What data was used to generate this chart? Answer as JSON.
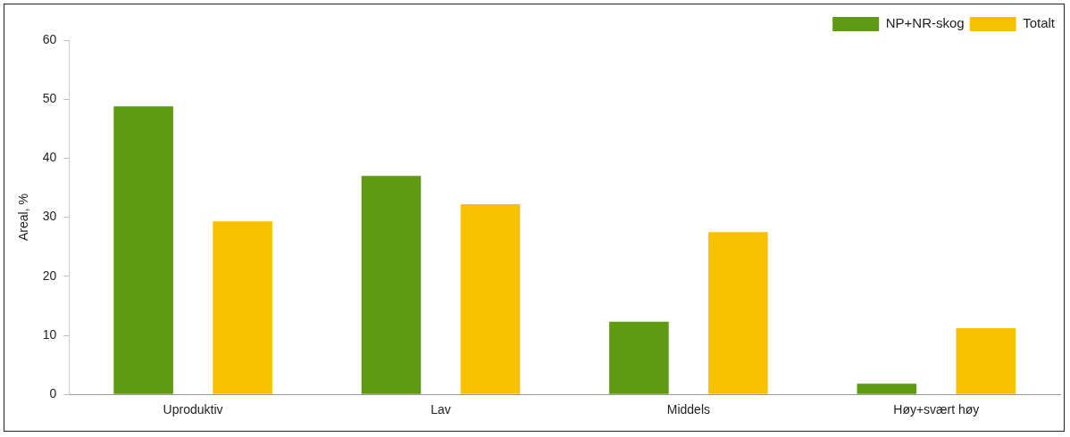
{
  "chart_data": {
    "type": "bar",
    "ylabel": "Areal, %",
    "categories": [
      "Uproduktiv",
      "Lav",
      "Middels",
      "Høy+svært høy"
    ],
    "series": [
      {
        "name": "NP+NR-skog",
        "color": "#5f9a12",
        "values": [
          48.8,
          37.0,
          12.3,
          1.8
        ]
      },
      {
        "name": "Totalt",
        "color": "#f9c000",
        "values": [
          29.3,
          32.2,
          27.5,
          11.2
        ]
      }
    ],
    "ylim": [
      0,
      60
    ],
    "yticks": [
      0,
      10,
      20,
      30,
      40,
      50,
      60
    ],
    "grid": false,
    "legend": "top right"
  }
}
